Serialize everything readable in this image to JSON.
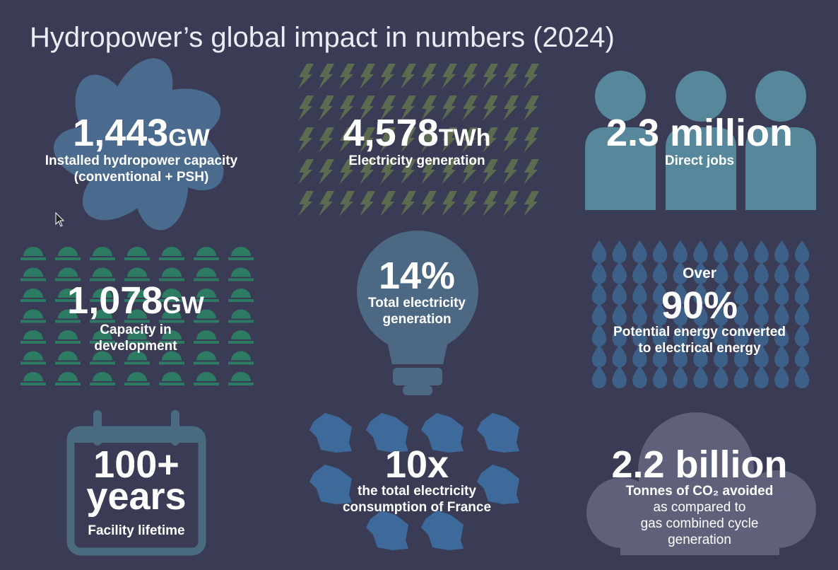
{
  "title": "Hydropower’s global impact in numbers (2024)",
  "tiles": [
    {
      "value": "1,443",
      "unit": "GW",
      "label": [
        "Installed hydropower capacity",
        "(conventional + PSH)"
      ]
    },
    {
      "value": "4,578",
      "unit": "TWh",
      "label": [
        "Electricity generation"
      ]
    },
    {
      "value": "2.3 million",
      "label": [
        "Direct jobs"
      ]
    },
    {
      "value": "1,078",
      "unit": "GW",
      "label": [
        "Capacity in",
        "development"
      ]
    },
    {
      "value": "14%",
      "label": [
        "Total electricity",
        "generation"
      ]
    },
    {
      "prefix": "Over",
      "value": "90%",
      "label": [
        "Potential energy converted",
        "to electrical energy"
      ]
    },
    {
      "value": "100+",
      "unit": "years",
      "label": [
        "Facility lifetime"
      ]
    },
    {
      "value": "10x",
      "label": [
        "the total electricity",
        "consumption of France"
      ]
    },
    {
      "value": "2.2 billion",
      "label": [
        "Tonnes of CO₂ avoided",
        "as compared to",
        "gas combined cycle",
        "generation"
      ]
    }
  ]
}
